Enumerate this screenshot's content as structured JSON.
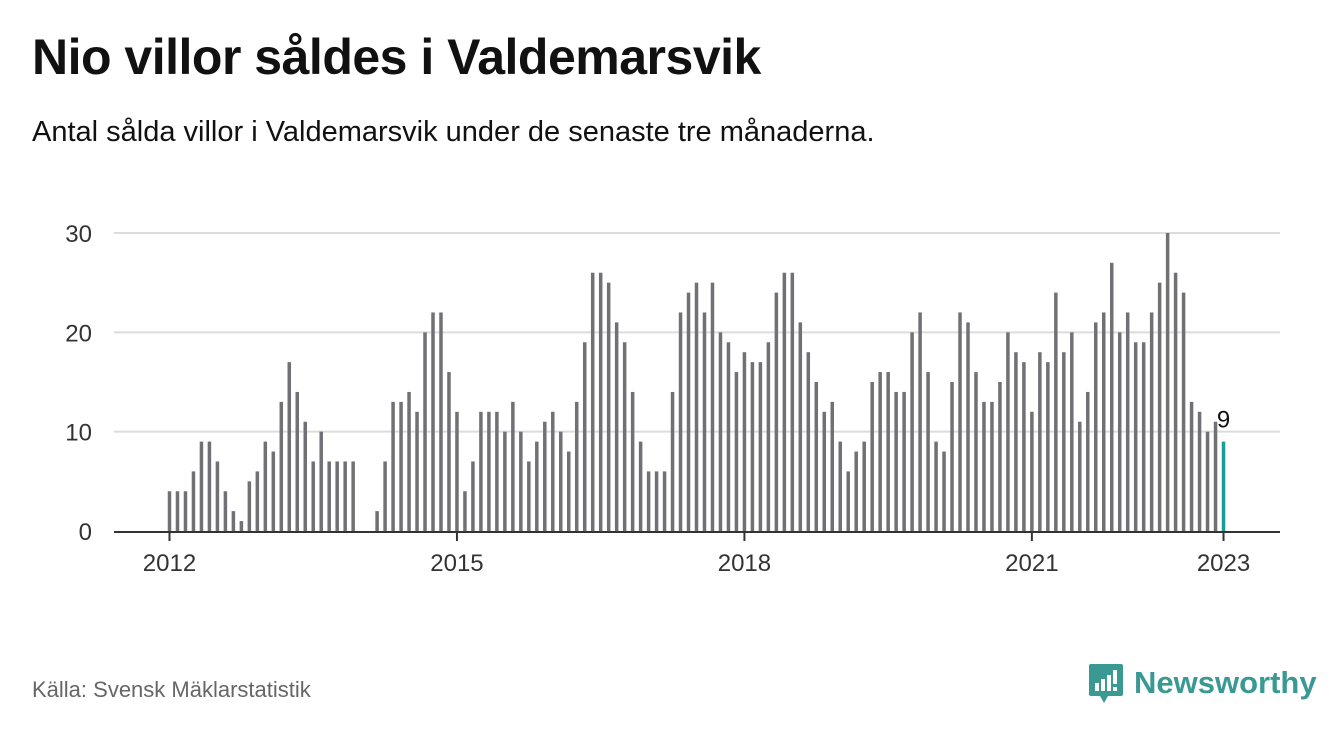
{
  "title": "Nio villor såldes i Valdemarsvik",
  "subtitle": "Antal sålda villor i Valdemarsvik under de senaste tre månaderna.",
  "source": "Källa: Svensk Mäklarstatistik",
  "brand": "Newsworthy",
  "colors": {
    "bar": "#707075",
    "highlight": "#1a9c97",
    "grid": "#dcdcdc",
    "axis": "#333333",
    "brand": "#3a9a93"
  },
  "chart_data": {
    "type": "bar",
    "start": "2012-01",
    "values": [
      4,
      4,
      4,
      6,
      9,
      9,
      7,
      4,
      2,
      1,
      5,
      6,
      9,
      8,
      13,
      17,
      14,
      11,
      7,
      10,
      7,
      7,
      7,
      7,
      null,
      null,
      2,
      7,
      13,
      13,
      14,
      12,
      20,
      22,
      22,
      16,
      12,
      4,
      7,
      12,
      12,
      12,
      10,
      13,
      10,
      7,
      9,
      11,
      12,
      10,
      8,
      13,
      19,
      26,
      26,
      25,
      21,
      19,
      14,
      9,
      6,
      6,
      6,
      14,
      22,
      24,
      25,
      22,
      25,
      20,
      19,
      16,
      18,
      17,
      17,
      19,
      24,
      26,
      26,
      21,
      18,
      15,
      12,
      13,
      9,
      6,
      8,
      9,
      15,
      16,
      16,
      14,
      14,
      20,
      22,
      16,
      9,
      8,
      15,
      22,
      21,
      16,
      13,
      13,
      15,
      20,
      18,
      17,
      12,
      18,
      17,
      24,
      18,
      20,
      11,
      14,
      21,
      22,
      27,
      20,
      22,
      19,
      19,
      22,
      25,
      30,
      26,
      24,
      13,
      12,
      10,
      11,
      9
    ],
    "ylim": [
      0,
      30
    ],
    "yticks": [
      "0",
      "10",
      "20",
      "30"
    ],
    "xticks": [
      "2012",
      "2015",
      "2018",
      "2021",
      "2023"
    ],
    "annotation": "9",
    "highlight_last": true
  }
}
